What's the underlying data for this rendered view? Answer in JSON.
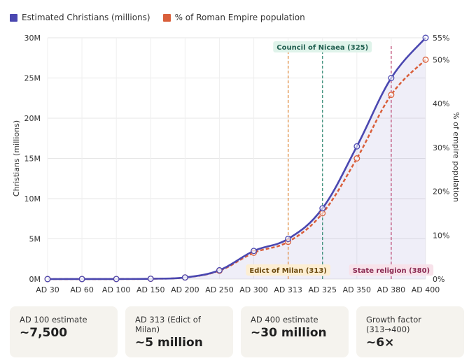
{
  "legend": [
    {
      "label": "Estimated Christians (millions)",
      "color": "#4a47b0"
    },
    {
      "label": "% of Roman Empire population",
      "color": "#d95f3b"
    }
  ],
  "chart_data": {
    "type": "line",
    "categories": [
      "AD 30",
      "AD 60",
      "AD 100",
      "AD 150",
      "AD 200",
      "AD 250",
      "AD 300",
      "AD 313",
      "AD 325",
      "AD 350",
      "AD 380",
      "AD 400"
    ],
    "series": [
      {
        "name": "Estimated Christians (millions)",
        "axis": "left",
        "color": "#4a47b0",
        "values": [
          0.001,
          0.004,
          0.0075,
          0.04,
          0.2,
          1.1,
          3.5,
          5,
          8.8,
          16.5,
          25,
          30
        ]
      },
      {
        "name": "% of Roman Empire population",
        "axis": "right",
        "color": "#d95f3b",
        "values": [
          0.0017,
          0.007,
          0.0125,
          0.07,
          0.36,
          1.9,
          6,
          8.5,
          15,
          27.5,
          42,
          50
        ]
      }
    ],
    "y_left": {
      "label": "Christians (millions)",
      "min": 0,
      "max": 30,
      "ticks": [
        "0M",
        "5M",
        "10M",
        "15M",
        "20M",
        "25M",
        "30M"
      ]
    },
    "y_right": {
      "label": "% of empire population",
      "min": 0,
      "max": 55,
      "ticks": [
        "0%",
        "10%",
        "20%",
        "30%",
        "40%",
        "50%",
        "55%"
      ],
      "tick_values": [
        0,
        10,
        20,
        30,
        40,
        50,
        55
      ]
    },
    "annotations": [
      {
        "category": "AD 313",
        "label": "Edict of Milan (313)",
        "color": "#e08a3c",
        "text_color": "#6b4a10",
        "bg": "#fdeed2",
        "position": "bottom"
      },
      {
        "category": "AD 325",
        "label": "Council of Nicaea (325)",
        "color": "#3a8f7a",
        "text_color": "#1f5e4f",
        "bg": "#dff3ea",
        "position": "top"
      },
      {
        "category": "AD 380",
        "label": "State religion (380)",
        "color": "#c0507a",
        "text_color": "#8a2a52",
        "bg": "#f8e2ea",
        "position": "bottom"
      }
    ],
    "grid": true
  },
  "cards": [
    {
      "label": "AD 100 estimate",
      "value": "~7,500"
    },
    {
      "label": "AD 313 (Edict of Milan)",
      "value": "~5 million"
    },
    {
      "label": "AD 400 estimate",
      "value": "~30 million"
    },
    {
      "label": "Growth factor (313→400)",
      "value": "~6×"
    }
  ]
}
